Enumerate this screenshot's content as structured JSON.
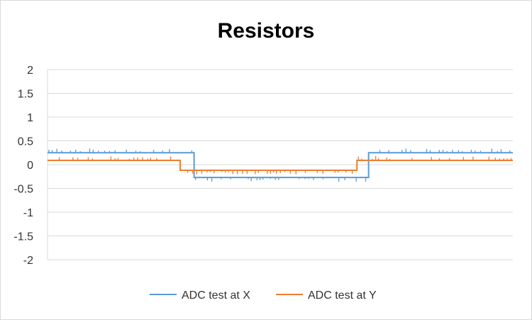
{
  "chart_data": {
    "type": "line",
    "title": "Resistors",
    "xlabel": "",
    "ylabel": "",
    "ylim": [
      -2,
      2
    ],
    "yticks": [
      "2",
      "1.5",
      "1",
      "0.5",
      "0",
      "-0.5",
      "-1",
      "-1.5",
      "-2"
    ],
    "grid": true,
    "legend_position": "bottom",
    "series": [
      {
        "name": "ADC test at X",
        "color": "#5b9bd5",
        "segments": [
          {
            "x_from": 0,
            "x_to": 315,
            "value": 0.25
          },
          {
            "x_from": 315,
            "x_to": 690,
            "value": -0.27
          },
          {
            "x_from": 690,
            "x_to": 1000,
            "value": 0.25
          }
        ]
      },
      {
        "name": "ADC test at Y",
        "color": "#ed7d31",
        "segments": [
          {
            "x_from": 0,
            "x_to": 285,
            "value": 0.09
          },
          {
            "x_from": 285,
            "x_to": 665,
            "value": -0.12
          },
          {
            "x_from": 665,
            "x_to": 1000,
            "value": 0.09
          }
        ]
      }
    ]
  }
}
